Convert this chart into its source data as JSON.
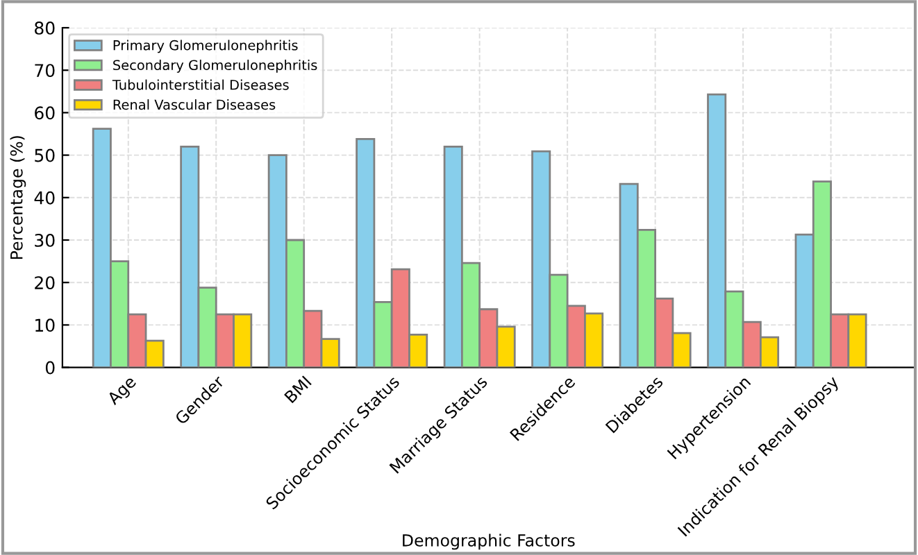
{
  "chart_data": {
    "type": "bar",
    "xlabel": "Demographic Factors",
    "ylabel": "Percentage (%)",
    "categories": [
      "Age",
      "Gender",
      "BMI",
      "Socioeconomic Status",
      "Marriage Status",
      "Residence",
      "Diabetes",
      "Hypertension",
      "Indication for Renal Biopsy"
    ],
    "series": [
      {
        "name": "Primary Glomerulonephritis",
        "color": "#87ceeb",
        "values": [
          56.2,
          52,
          50,
          53.8,
          52,
          50.9,
          43.2,
          64.3,
          31.3
        ]
      },
      {
        "name": "Secondary Glomerulonephritis",
        "color": "#90ee90",
        "values": [
          25,
          18.8,
          30,
          15.4,
          24.6,
          21.8,
          32.4,
          17.9,
          43.8
        ]
      },
      {
        "name": "Tubulointerstitial Diseases",
        "color": "#f08080",
        "values": [
          12.5,
          12.5,
          13.3,
          23.1,
          13.7,
          14.5,
          16.2,
          10.7,
          12.5
        ]
      },
      {
        "name": "Renal Vascular Diseases",
        "color": "#ffd700",
        "values": [
          6.3,
          12.5,
          6.7,
          7.7,
          9.6,
          12.7,
          8.1,
          7.1,
          12.5
        ]
      }
    ],
    "ylim": [
      0,
      80
    ],
    "yticks": [
      0,
      10,
      20,
      30,
      40,
      50,
      60,
      70,
      80
    ],
    "grid": true,
    "legend": "top left"
  }
}
